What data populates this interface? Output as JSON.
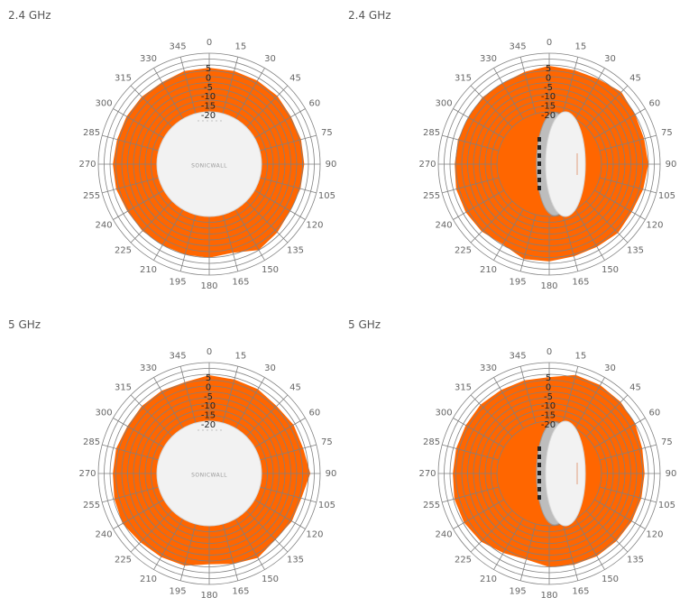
{
  "style": {
    "fill": "#ff6600",
    "grid": "#808080",
    "device": "#f2f2f2",
    "device_edge": "#d8d8d8"
  },
  "device_label": "SONICWALL",
  "chart_data": [
    {
      "type": "polar-area",
      "title": "2.4 GHz",
      "view": "front",
      "rlim": [
        -20,
        5
      ],
      "radial_ticks": [
        "5",
        "0",
        "-5",
        "-10",
        "-15",
        "-20"
      ],
      "angle_ticks": [
        "0",
        "15",
        "30",
        "45",
        "60",
        "75",
        "90",
        "105",
        "120",
        "135",
        "150",
        "165",
        "180",
        "195",
        "210",
        "225",
        "240",
        "255",
        "270",
        "285",
        "300",
        "315",
        "330",
        "345"
      ],
      "angles": [
        0,
        15,
        30,
        45,
        60,
        75,
        90,
        105,
        120,
        135,
        150,
        165,
        180,
        195,
        210,
        225,
        240,
        255,
        270,
        285,
        300,
        315,
        330,
        345
      ],
      "values": [
        3.5,
        3.5,
        3.5,
        3.5,
        2.5,
        2.8,
        2.8,
        2.5,
        2.0,
        3.5,
        5.0,
        1.0,
        2.0,
        2.0,
        2.0,
        2.5,
        2.5,
        3.5,
        3.5,
        3.0,
        3.0,
        3.0,
        2.5,
        3.5
      ]
    },
    {
      "type": "polar-area",
      "title": "2.4 GHz",
      "view": "side",
      "rlim": [
        -20,
        5
      ],
      "radial_ticks": [
        "5",
        "0",
        "-5",
        "-10",
        "-15",
        "-20"
      ],
      "angle_ticks": [
        "0",
        "15",
        "30",
        "45",
        "60",
        "75",
        "90",
        "105",
        "120",
        "135",
        "150",
        "165",
        "180",
        "195",
        "210",
        "225",
        "240",
        "255",
        "270",
        "285",
        "300",
        "315",
        "330",
        "345"
      ],
      "angles": [
        0,
        15,
        30,
        45,
        60,
        75,
        90,
        105,
        120,
        135,
        150,
        165,
        180,
        195,
        210,
        225,
        240,
        255,
        270,
        285,
        300,
        315,
        330,
        345
      ],
      "values": [
        4.5,
        4.0,
        4.5,
        6.5,
        5.0,
        4.5,
        5.0,
        4.0,
        3.0,
        4.0,
        3.0,
        3.0,
        4.0,
        4.5,
        1.5,
        3.0,
        3.5,
        3.5,
        2.5,
        2.5,
        2.0,
        2.5,
        2.0,
        3.0
      ]
    },
    {
      "type": "polar-area",
      "title": "5 GHz",
      "view": "front",
      "rlim": [
        -20,
        5
      ],
      "radial_ticks": [
        "5",
        "0",
        "-5",
        "-10",
        "-15",
        "-20"
      ],
      "angle_ticks": [
        "0",
        "15",
        "30",
        "45",
        "60",
        "75",
        "90",
        "105",
        "120",
        "135",
        "150",
        "165",
        "180",
        "195",
        "210",
        "225",
        "240",
        "255",
        "270",
        "285",
        "300",
        "315",
        "330",
        "345"
      ],
      "angles": [
        0,
        15,
        30,
        45,
        60,
        75,
        90,
        105,
        120,
        135,
        150,
        165,
        180,
        195,
        210,
        225,
        240,
        255,
        270,
        285,
        300,
        315,
        330,
        345
      ],
      "values": [
        4.5,
        4.0,
        4.0,
        3.0,
        4.0,
        4.0,
        6.0,
        3.0,
        3.0,
        2.0,
        4.0,
        2.0,
        0.5,
        3.0,
        3.5,
        4.0,
        5.5,
        4.5,
        3.5,
        3.5,
        2.5,
        3.0,
        3.0,
        2.5
      ]
    },
    {
      "type": "polar-area",
      "title": "5 GHz",
      "view": "side",
      "rlim": [
        -20,
        5
      ],
      "radial_ticks": [
        "5",
        "0",
        "-5",
        "-10",
        "-15",
        "-20"
      ],
      "angle_ticks": [
        "0",
        "15",
        "30",
        "45",
        "60",
        "75",
        "90",
        "105",
        "120",
        "135",
        "150",
        "165",
        "180",
        "195",
        "210",
        "225",
        "240",
        "255",
        "270",
        "285",
        "300",
        "315",
        "330",
        "345"
      ],
      "angles": [
        0,
        15,
        30,
        45,
        60,
        75,
        90,
        105,
        120,
        135,
        150,
        165,
        180,
        195,
        210,
        225,
        240,
        255,
        270,
        285,
        300,
        315,
        330,
        345
      ],
      "values": [
        3.5,
        6.5,
        6.5,
        6.0,
        5.0,
        3.5,
        3.0,
        3.0,
        3.0,
        3.0,
        3.0,
        2.5,
        2.0,
        -0.5,
        1.0,
        3.5,
        4.5,
        4.5,
        3.5,
        3.5,
        3.5,
        4.0,
        3.5,
        3.5
      ]
    }
  ]
}
